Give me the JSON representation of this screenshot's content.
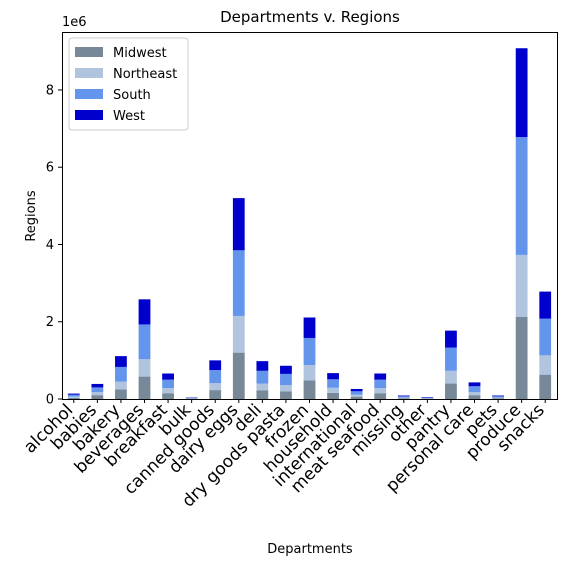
{
  "chart_data": {
    "type": "bar",
    "stacked": true,
    "title": "Departments v. Regions",
    "xlabel": "Departments",
    "ylabel": "Regions",
    "offset_label": "1e6",
    "ylim": [
      0,
      9.5
    ],
    "yticks": [
      0,
      2,
      4,
      6,
      8
    ],
    "grid": false,
    "legend_position": "top-left",
    "categories": [
      "alcohol",
      "babies",
      "bakery",
      "beverages",
      "breakfast",
      "bulk",
      "canned goods",
      "dairy eggs",
      "deli",
      "dry goods pasta",
      "frozen",
      "household",
      "international",
      "meat seafood",
      "missing",
      "other",
      "pantry",
      "personal care",
      "pets",
      "produce",
      "snacks"
    ],
    "series": [
      {
        "name": "Midwest",
        "color": "#778899",
        "values": [
          0.03,
          0.1,
          0.25,
          0.58,
          0.15,
          0.01,
          0.23,
          1.2,
          0.22,
          0.2,
          0.48,
          0.16,
          0.06,
          0.15,
          0.02,
          0.01,
          0.4,
          0.1,
          0.02,
          2.13,
          0.63
        ]
      },
      {
        "name": "Northeast",
        "color": "#B0C4DE",
        "values": [
          0.03,
          0.08,
          0.2,
          0.45,
          0.13,
          0.01,
          0.18,
          0.95,
          0.18,
          0.16,
          0.4,
          0.13,
          0.05,
          0.13,
          0.02,
          0.01,
          0.33,
          0.08,
          0.02,
          1.6,
          0.5
        ]
      },
      {
        "name": "South",
        "color": "#6495ED",
        "values": [
          0.05,
          0.12,
          0.38,
          0.9,
          0.22,
          0.01,
          0.34,
          1.7,
          0.33,
          0.29,
          0.7,
          0.22,
          0.09,
          0.22,
          0.03,
          0.02,
          0.6,
          0.15,
          0.03,
          3.05,
          0.95
        ]
      },
      {
        "name": "West",
        "color": "#0000CD",
        "values": [
          0.03,
          0.09,
          0.28,
          0.65,
          0.16,
          0.01,
          0.25,
          1.35,
          0.25,
          0.21,
          0.53,
          0.16,
          0.06,
          0.16,
          0.02,
          0.01,
          0.44,
          0.1,
          0.02,
          2.3,
          0.7
        ]
      }
    ]
  }
}
